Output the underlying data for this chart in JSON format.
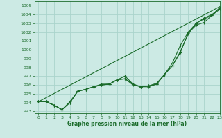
{
  "title": "Graphe pression niveau de la mer (hPa)",
  "bg_color": "#cceae4",
  "grid_color": "#aad4cc",
  "line_color": "#1a6b2a",
  "xlim": [
    -0.5,
    23
  ],
  "ylim": [
    992.8,
    1005.5
  ],
  "yticks": [
    993,
    994,
    995,
    996,
    997,
    998,
    999,
    1000,
    1001,
    1002,
    1003,
    1004,
    1005
  ],
  "xticks": [
    0,
    1,
    2,
    3,
    4,
    5,
    6,
    7,
    8,
    9,
    10,
    11,
    12,
    13,
    14,
    15,
    16,
    17,
    18,
    19,
    20,
    21,
    22,
    23
  ],
  "line1": [
    994.1,
    994.1,
    993.7,
    993.2,
    994.0,
    995.3,
    995.5,
    995.8,
    996.0,
    996.1,
    996.6,
    996.7,
    996.0,
    995.8,
    995.8,
    996.1,
    997.2,
    998.2,
    999.7,
    1001.9,
    1002.8,
    1003.1,
    1003.9,
    1004.6
  ],
  "line2": [
    994.1,
    994.1,
    993.7,
    993.2,
    994.0,
    995.3,
    995.5,
    995.8,
    996.0,
    996.1,
    996.6,
    997.0,
    996.1,
    995.8,
    995.9,
    996.2,
    997.2,
    998.5,
    1000.5,
    1002.0,
    1003.0,
    1003.6,
    1004.0,
    1004.7
  ],
  "line3": [
    994.1,
    994.1,
    993.7,
    993.2,
    994.1,
    995.3,
    995.5,
    995.8,
    996.1,
    996.1,
    996.6,
    996.7,
    996.1,
    995.8,
    995.9,
    996.1,
    997.2,
    998.2,
    999.8,
    1001.8,
    1003.0,
    1003.5,
    1003.9,
    1004.8
  ],
  "line4_x": [
    0,
    23
  ],
  "line4_y": [
    994.1,
    1004.9
  ]
}
